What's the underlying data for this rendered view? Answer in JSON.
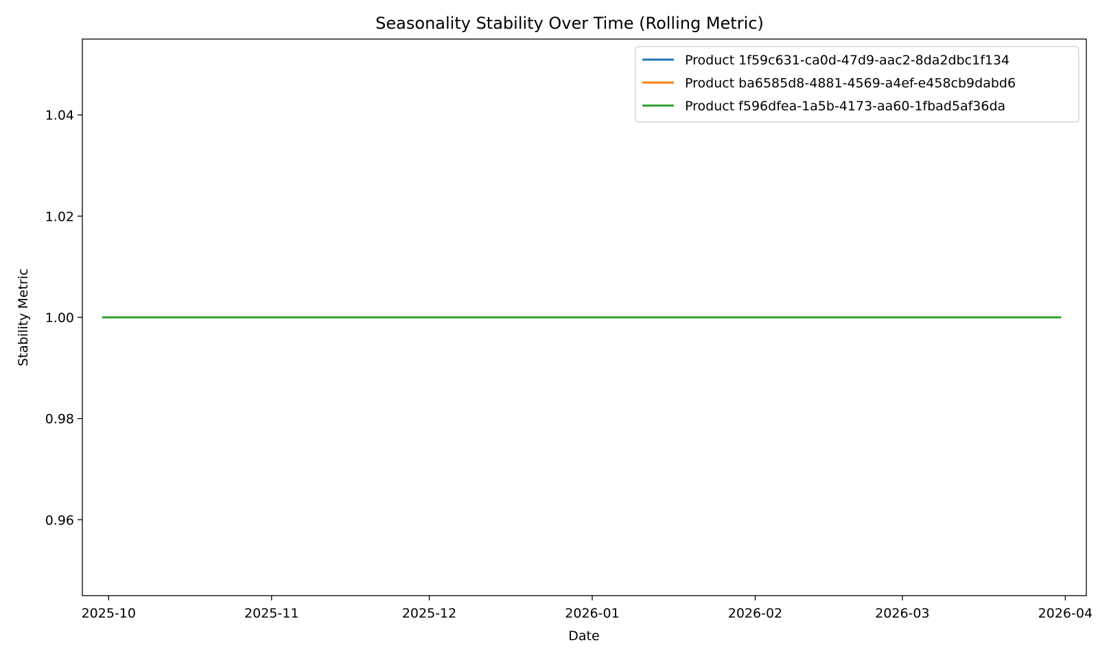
{
  "chart_data": {
    "type": "line",
    "title": "Seasonality Stability Over Time (Rolling Metric)",
    "xlabel": "Date",
    "ylabel": "Stability Metric",
    "x_axis_type": "date",
    "xlim": [
      "2025-09-26",
      "2026-04-05"
    ],
    "ylim": [
      0.945,
      1.055
    ],
    "x_ticks": [
      "2025-10-01",
      "2025-11-01",
      "2025-12-01",
      "2026-01-01",
      "2026-02-01",
      "2026-03-01",
      "2026-04-01"
    ],
    "x_tick_labels": [
      "2025-10",
      "2025-11",
      "2025-12",
      "2026-01",
      "2026-02",
      "2026-03",
      "2026-04"
    ],
    "y_ticks": [
      0.96,
      0.98,
      1.0,
      1.02,
      1.04
    ],
    "y_tick_labels": [
      "0.96",
      "0.98",
      "1.00",
      "1.02",
      "1.04"
    ],
    "grid": false,
    "legend_position": "top-right",
    "series": [
      {
        "name": "Product 1f59c631-ca0d-47d9-aac2-8da2dbc1f134",
        "color": "#1f77b4",
        "x": [
          "2025-09-30",
          "2026-03-31"
        ],
        "y": [
          1.0,
          1.0
        ]
      },
      {
        "name": "Product ba6585d8-4881-4569-a4ef-e458cb9dabd6",
        "color": "#ff7f0e",
        "x": [
          "2025-09-30",
          "2026-03-31"
        ],
        "y": [
          1.0,
          1.0
        ]
      },
      {
        "name": "Product f596dfea-1a5b-4173-aa60-1fbad5af36da",
        "color": "#2ca02c",
        "x": [
          "2025-09-30",
          "2026-03-31"
        ],
        "y": [
          1.0,
          1.0
        ]
      }
    ]
  }
}
